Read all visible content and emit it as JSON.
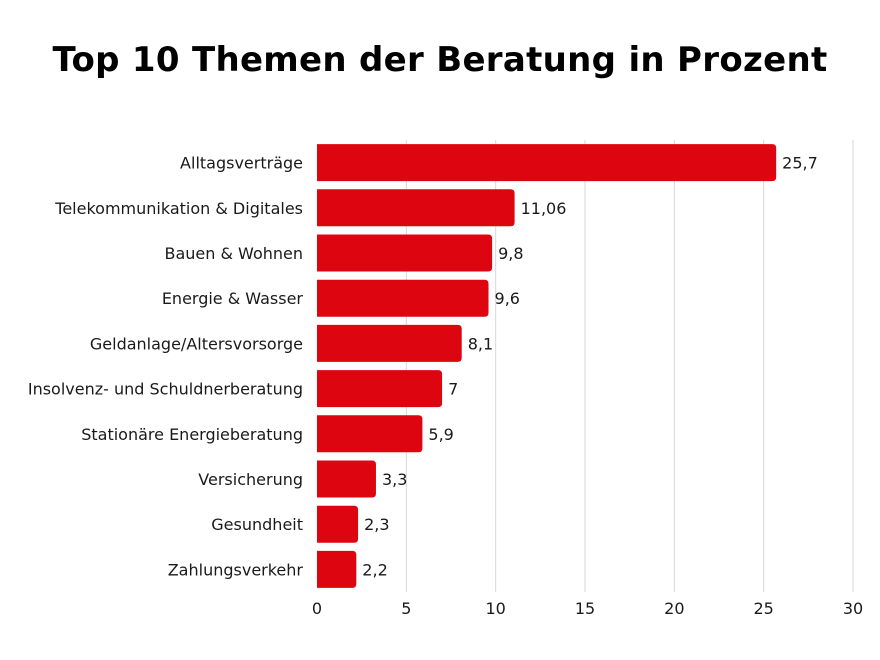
{
  "chart_data": {
    "type": "bar",
    "orientation": "horizontal",
    "title": "Top 10 Themen der Beratung in Prozent",
    "categories": [
      "Alltagsverträge",
      "Telekommunikation & Digitales",
      "Bauen & Wohnen",
      "Energie & Wasser",
      "Geldanlage/Altersvorsorge",
      "Insolvenz- und Schuldnerberatung",
      "Stationäre Energieberatung",
      "Versicherung",
      "Gesundheit",
      "Zahlungsverkehr"
    ],
    "values": [
      25.7,
      11.06,
      9.8,
      9.6,
      8.1,
      7,
      5.9,
      3.3,
      2.3,
      2.2
    ],
    "value_labels": [
      "25,7",
      "11,06",
      "9,8",
      "9,6",
      "8,1",
      "7",
      "5,9",
      "3,3",
      "2,3",
      "2,2"
    ],
    "xticks": [
      0,
      5,
      10,
      15,
      20,
      25,
      30
    ],
    "xlim": [
      0,
      30
    ],
    "grid": "vertical",
    "bar_color": "#dc0510",
    "grid_color": "#d7d7d7"
  }
}
